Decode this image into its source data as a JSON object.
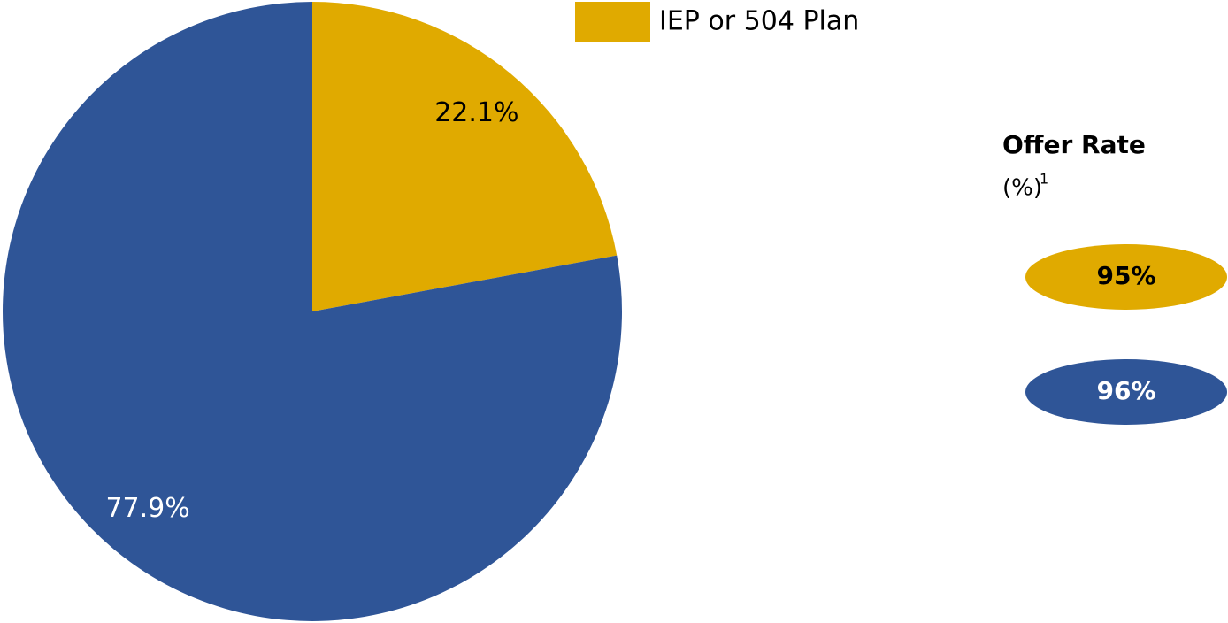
{
  "chart_data": {
    "type": "pie",
    "categories": [
      "IEP or 504 Plan",
      null
    ],
    "values": [
      22.1,
      77.9
    ],
    "value_labels": [
      "22.1%",
      "77.9%"
    ],
    "colors": [
      "#e0aa00",
      "#2f5597"
    ],
    "label_colors": [
      "#000000",
      "#ffffff"
    ]
  },
  "offer_rate": {
    "title": "Offer Rate",
    "unit": "(%)",
    "footnote": "1",
    "values": [
      95,
      96
    ],
    "value_labels": [
      "95%",
      "96%"
    ],
    "colors": [
      "#e0aa00",
      "#2f5597"
    ],
    "label_colors": [
      "#000000",
      "#ffffff"
    ]
  }
}
